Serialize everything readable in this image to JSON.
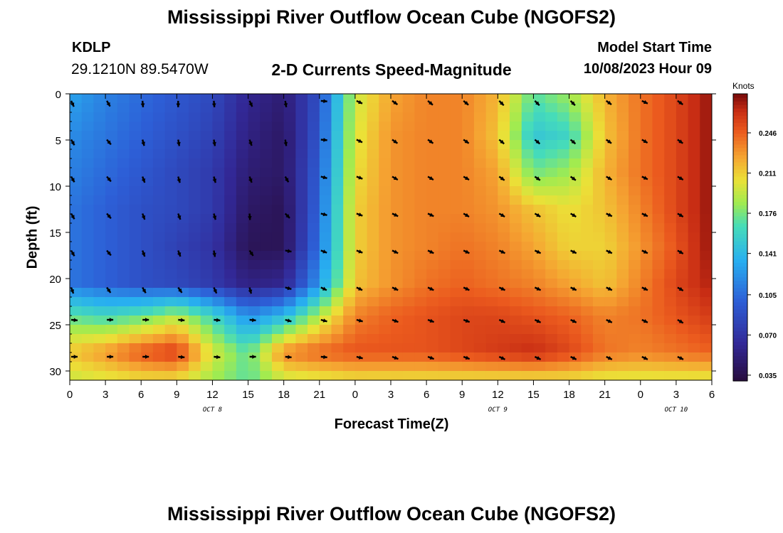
{
  "header": {
    "title": "Mississippi River Outflow Ocean Cube (NGOFS2)",
    "station": "KDLP",
    "coords": "29.1210N  89.5470W",
    "subtitle": "2-D Currents Speed-Magnitude",
    "model_label": "Model Start Time",
    "model_time": "10/08/2023 Hour 09"
  },
  "footer": {
    "title": "Mississippi River Outflow Ocean Cube (NGOFS2)"
  },
  "chart_data": {
    "type": "heatmap",
    "title": "2-D Currents Speed-Magnitude",
    "xlabel": "Forecast Time(Z)",
    "ylabel": "Depth (ft)",
    "x_ticks": [
      "0",
      "3",
      "6",
      "9",
      "12",
      "15",
      "18",
      "21",
      "0",
      "3",
      "6",
      "9",
      "12",
      "15",
      "18",
      "21",
      "0",
      "3",
      "6"
    ],
    "x_range_hours": [
      0,
      54
    ],
    "date_labels": [
      {
        "label": "OCT 8",
        "hour": 12
      },
      {
        "label": "OCT 9",
        "hour": 36
      },
      {
        "label": "OCT 10",
        "hour": 51
      }
    ],
    "y_ticks": [
      0,
      5,
      10,
      15,
      20,
      25,
      30
    ],
    "ylim": [
      0,
      31
    ],
    "y_inverted": true,
    "colorbar": {
      "unit": "Knots",
      "ticks": [
        0.035,
        0.07,
        0.105,
        0.141,
        0.176,
        0.211,
        0.246
      ],
      "tick_labels": [
        "0.035",
        "0.070",
        "0.105",
        "0.141",
        "0.176",
        "0.211",
        "0.246"
      ],
      "range": [
        0.03,
        0.28
      ],
      "colormap": "jet"
    },
    "speed_grid": {
      "x_hours": [
        0,
        3,
        6,
        9,
        12,
        15,
        18,
        21,
        24,
        27,
        30,
        33,
        36,
        39,
        42,
        45,
        48,
        51,
        54
      ],
      "depths_ft": [
        0,
        4.5,
        8.5,
        12.5,
        16.5,
        20.5,
        24,
        28,
        31
      ],
      "values": [
        [
          0.13,
          0.115,
          0.105,
          0.095,
          0.085,
          0.06,
          0.05,
          0.09,
          0.195,
          0.225,
          0.235,
          0.235,
          0.22,
          0.17,
          0.185,
          0.22,
          0.24,
          0.255,
          0.275
        ],
        [
          0.12,
          0.11,
          0.1,
          0.09,
          0.08,
          0.055,
          0.045,
          0.095,
          0.2,
          0.23,
          0.235,
          0.235,
          0.215,
          0.15,
          0.16,
          0.215,
          0.24,
          0.255,
          0.275
        ],
        [
          0.115,
          0.105,
          0.095,
          0.085,
          0.075,
          0.05,
          0.045,
          0.1,
          0.205,
          0.23,
          0.235,
          0.235,
          0.225,
          0.175,
          0.185,
          0.22,
          0.24,
          0.255,
          0.275
        ],
        [
          0.11,
          0.1,
          0.09,
          0.085,
          0.075,
          0.045,
          0.04,
          0.105,
          0.21,
          0.23,
          0.235,
          0.235,
          0.23,
          0.215,
          0.205,
          0.215,
          0.235,
          0.255,
          0.275
        ],
        [
          0.11,
          0.1,
          0.09,
          0.08,
          0.07,
          0.04,
          0.04,
          0.11,
          0.21,
          0.23,
          0.235,
          0.24,
          0.235,
          0.225,
          0.21,
          0.21,
          0.23,
          0.25,
          0.275
        ],
        [
          0.11,
          0.1,
          0.09,
          0.085,
          0.075,
          0.055,
          0.06,
          0.125,
          0.215,
          0.23,
          0.24,
          0.245,
          0.24,
          0.235,
          0.225,
          0.215,
          0.235,
          0.255,
          0.27
        ],
        [
          0.17,
          0.16,
          0.17,
          0.19,
          0.16,
          0.12,
          0.14,
          0.19,
          0.235,
          0.245,
          0.25,
          0.255,
          0.255,
          0.25,
          0.245,
          0.235,
          0.24,
          0.25,
          0.26
        ],
        [
          0.215,
          0.23,
          0.25,
          0.26,
          0.2,
          0.17,
          0.235,
          0.245,
          0.25,
          0.25,
          0.25,
          0.255,
          0.26,
          0.265,
          0.255,
          0.24,
          0.235,
          0.24,
          0.245
        ],
        [
          0.195,
          0.2,
          0.205,
          0.205,
          0.185,
          0.17,
          0.195,
          0.2,
          0.205,
          0.205,
          0.205,
          0.205,
          0.205,
          0.205,
          0.205,
          0.2,
          0.2,
          0.2,
          0.2
        ]
      ]
    },
    "vectors": {
      "depths_ft": [
        0.3,
        4.5,
        8.5,
        12.5,
        16.5,
        20.5,
        24,
        28
      ],
      "note": "current direction in degrees clockwise from north, one row per depth, one column per 3-hour step 0..54",
      "directions_deg": [
        [
          155,
          150,
          175,
          180,
          175,
          155,
          170,
          95,
          115,
          125,
          130,
          130,
          135,
          135,
          135,
          125,
          115,
          125,
          135
        ],
        [
          150,
          140,
          165,
          170,
          170,
          160,
          170,
          95,
          115,
          125,
          125,
          125,
          130,
          130,
          130,
          125,
          120,
          125,
          135
        ],
        [
          150,
          140,
          160,
          165,
          165,
          160,
          150,
          105,
          110,
          120,
          120,
          120,
          125,
          125,
          125,
          120,
          115,
          120,
          130
        ],
        [
          150,
          140,
          160,
          160,
          165,
          175,
          135,
          105,
          110,
          115,
          115,
          120,
          120,
          120,
          120,
          115,
          115,
          120,
          130
        ],
        [
          150,
          140,
          160,
          160,
          170,
          145,
          100,
          110,
          110,
          115,
          115,
          115,
          115,
          115,
          115,
          115,
          115,
          120,
          125
        ],
        [
          160,
          145,
          150,
          145,
          155,
          165,
          105,
          115,
          115,
          115,
          115,
          115,
          115,
          115,
          115,
          115,
          115,
          120,
          125
        ],
        [
          95,
          90,
          90,
          95,
          95,
          95,
          105,
          105,
          105,
          110,
          110,
          110,
          115,
          115,
          115,
          115,
          115,
          120,
          125
        ],
        [
          90,
          90,
          90,
          95,
          95,
          90,
          95,
          95,
          105,
          110,
          110,
          110,
          115,
          115,
          115,
          115,
          115,
          115,
          120
        ]
      ]
    }
  }
}
